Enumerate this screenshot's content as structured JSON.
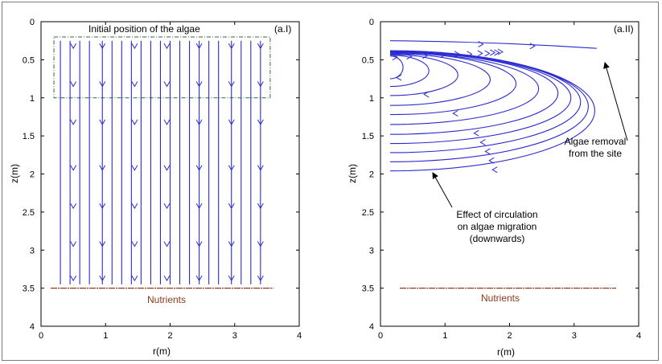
{
  "chart_data": [
    {
      "type": "line",
      "panel_label": "(a.I)",
      "xlabel": "r(m)",
      "ylabel": "z(m)",
      "xlim": [
        0,
        4
      ],
      "ylim": [
        0,
        4
      ],
      "y_inverted": true,
      "xticks": [
        0,
        1,
        2,
        3,
        4
      ],
      "yticks": [
        0,
        0.5,
        1,
        1.5,
        2,
        2.5,
        3,
        3.5,
        4
      ],
      "region_label": "Initial position of the algae",
      "region": {
        "r": [
          0.2,
          3.55
        ],
        "z": [
          0.2,
          1.0
        ]
      },
      "nutrients_label": "Nutrients",
      "nutrients_z": 3.5,
      "nutrients_r": [
        0.15,
        3.6
      ],
      "streamlines": {
        "direction": "downwards",
        "r_positions": [
          0.3,
          0.45,
          0.6,
          0.75,
          0.95,
          1.1,
          1.25,
          1.4,
          1.55,
          1.7,
          1.85,
          2.0,
          2.15,
          2.3,
          2.45,
          2.6,
          2.75,
          2.95,
          3.1,
          3.25,
          3.4
        ],
        "z_start": 0.25,
        "z_end": 3.45,
        "arrow_r": [
          0.5,
          0.95,
          1.45,
          1.95,
          2.45,
          2.95,
          3.4
        ],
        "arrow_z": [
          0.35,
          0.85,
          1.35,
          1.95,
          2.45,
          2.95,
          3.4
        ]
      }
    },
    {
      "type": "line",
      "panel_label": "(a.II)",
      "xlabel": "r(m)",
      "ylabel": "z(m)",
      "xlim": [
        0,
        4
      ],
      "ylim": [
        0,
        4
      ],
      "y_inverted": true,
      "xticks": [
        0,
        1,
        2,
        3,
        4
      ],
      "yticks": [
        0,
        0.5,
        1,
        1.5,
        2,
        2.5,
        3,
        3.5,
        4
      ],
      "nutrients_label": "Nutrients",
      "nutrients_z": 3.5,
      "nutrients_r": [
        0.3,
        3.65
      ],
      "annotation_removal": "Algae removal\nfrom the site",
      "annotation_circulation": "Effect of circulation\non algae migration\n(downwards)",
      "top_streamline": {
        "r": [
          0.15,
          3.35
        ],
        "z_start": 0.25,
        "z_end": 0.35
      },
      "loops": [
        {
          "tip_r": 0.35,
          "z_top": 0.45,
          "z_bottom": 0.75
        },
        {
          "tip_r": 0.75,
          "z_top": 0.44,
          "z_bottom": 0.85
        },
        {
          "tip_r": 1.2,
          "z_top": 0.43,
          "z_bottom": 0.97
        },
        {
          "tip_r": 1.7,
          "z_top": 0.42,
          "z_bottom": 1.1
        },
        {
          "tip_r": 2.1,
          "z_top": 0.41,
          "z_bottom": 1.22
        },
        {
          "tip_r": 2.45,
          "z_top": 0.41,
          "z_bottom": 1.35
        },
        {
          "tip_r": 2.75,
          "z_top": 0.4,
          "z_bottom": 1.48
        },
        {
          "tip_r": 2.95,
          "z_top": 0.4,
          "z_bottom": 1.6
        },
        {
          "tip_r": 3.1,
          "z_top": 0.39,
          "z_bottom": 1.72
        },
        {
          "tip_r": 3.22,
          "z_top": 0.39,
          "z_bottom": 1.84
        },
        {
          "tip_r": 3.32,
          "z_top": 0.38,
          "z_bottom": 1.96
        }
      ]
    }
  ]
}
